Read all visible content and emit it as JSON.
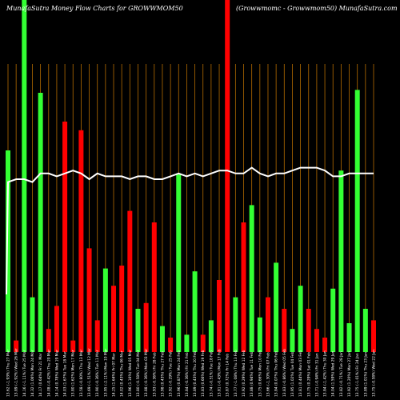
{
  "title_left": "MunafaSutra  Money Flow  Charts for GROWWMOM50",
  "title_right": "(Growwmomc  -  Growwmom50) MunafaSutra.com",
  "colors": {
    "background": "#000000",
    "up": "#33ff33",
    "down": "#ff0000",
    "line": "#ffffff",
    "grid": "#b36b00"
  },
  "chart_data": {
    "type": "bar",
    "title": "MunafaSutra  Money Flow  Charts for GROWWMOM50",
    "subtitle": "(Growwmomc  -  Growwmom50) MunafaSutra.com",
    "grid": true,
    "ylim": [
      0,
      100
    ],
    "categories": [
      "13.62 (-1.93%) Thu 27 Mar",
      "13.89 (-1.92%) Wed 26 Mar",
      "14.16 (-1.11%) Tue 25 Mar",
      "14.32 (1.06%) Mon 24 Mar",
      "14.17 (0.64%) Fri 21 Mar",
      "14.08 (-0.42%) Thu 20 Mar",
      "14.14 (0.78%) Wed 19 Mar",
      "14.03 (1.67%) Tue 18 Mar",
      "13.80 (1.62%) Mon 17 Mar",
      "13.58 (-0.80%) Thu 13 Mar",
      "13.69 (-1.51%) Wed 12 Mar",
      "13.90 (-0.36%) Tue 11 Mar",
      "13.95 (-2.11%) Mon 10 Mar",
      "14.25 (1.64%) Fri 07 Mar",
      "14.02 (0.43%) Thu 06 Mar",
      "13.96 (1.16%) Wed 05 Mar",
      "13.80 (-0.58%) Tue 04 Mar",
      "13.88 (-0.36%) Mon 03 Mar",
      "13.93 (-0.36%) Fri 28 Feb",
      "13.98 (0.43%) Thu 27 Feb",
      "13.92 (-0.29%) Tue 25 Feb",
      "13.96 (0.87%) Mon 24 Feb",
      "13.84 (-0.36%) Fri 21 Feb",
      "13.89 (0.43%) Thu 20 Feb",
      "13.83 (0.66%) Wed 19 Feb",
      "13.74 (-0.51%) Tue 18 Feb",
      "13.81 (-0.43%) Mon 17 Feb",
      "13.87 (0.72%) Fri 14 Feb",
      "13.77 (-1.08%) Thu 13 Feb",
      "13.92 (0.29%) Wed 12 Feb",
      "13.88 (0.94%) Tue 11 Feb",
      "13.75 (0.66%) Mon 10 Feb",
      "13.66 (-1.30%) Fri 07 Feb",
      "13.84 (0.07%) Thu 06 Feb",
      "13.83 (-0.86%) Wed 05 Feb",
      "13.95 (1.02%) Tue 04 Feb",
      "13.81 (0.44%) Mon 03 Feb",
      "13.75 (0.29%) Sat 01 Feb",
      "13.71 (-0.94%) Fri 31 Jan",
      "13.84 (-1.42%) Thu 30 Jan",
      "14.04 (1.59%) Wed 29 Jan",
      "13.82 (-0.71%) Tue 28 Jan",
      "13.92 (1.20%) Mon 27 Jan",
      "13.75 (-1.01%) Fri 24 Jan",
      "13.89 (1.01%) Thu 23 Jan",
      "13.75 (-0.58%) Wed 22 Jan"
    ],
    "series": [
      {
        "colors": [
          "up",
          "down",
          "up",
          "up",
          "up",
          "down",
          "down",
          "down",
          "down",
          "down",
          "down",
          "down",
          "up",
          "down",
          "down",
          "down",
          "up",
          "down",
          "down",
          "up",
          "down",
          "up",
          "up",
          "up",
          "down",
          "up",
          "down",
          "down",
          "up",
          "down",
          "up",
          "up",
          "down",
          "up",
          "down",
          "up",
          "up",
          "down",
          "down",
          "down",
          "up",
          "up",
          "up",
          "up",
          "up",
          "down"
        ],
        "values": [
          70,
          4,
          100,
          19,
          90,
          8,
          16,
          80,
          4,
          77,
          36,
          11,
          29,
          23,
          30,
          49,
          15,
          17,
          45,
          9,
          5,
          62,
          6,
          28,
          6,
          11,
          25,
          100,
          19,
          45,
          51,
          12,
          19,
          31,
          15,
          8,
          23,
          15,
          8,
          5,
          22,
          63,
          10,
          91,
          15,
          11
        ]
      },
      {
        "type": "line",
        "values": [
          59,
          60,
          60,
          59,
          62,
          62,
          61,
          62,
          63,
          62,
          60,
          62,
          61,
          61,
          61,
          60,
          61,
          61,
          60,
          60,
          61,
          62,
          61,
          62,
          61,
          62,
          63,
          63,
          62,
          62,
          64,
          62,
          61,
          62,
          62,
          63,
          64,
          64,
          64,
          63,
          61,
          61,
          62,
          62,
          62,
          62
        ]
      }
    ]
  }
}
